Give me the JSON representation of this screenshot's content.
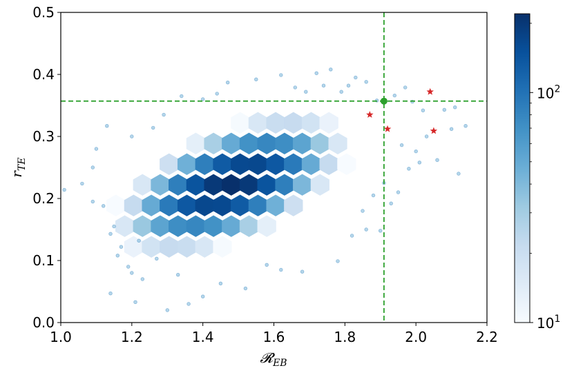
{
  "chart_data": {
    "type": "heatmap",
    "subtype": "hexbin-with-scatter",
    "xlabel": "𝓡",
    "xlabel_sub": "EB",
    "ylabel": "r",
    "ylabel_sub": "TE",
    "xlim": [
      1.0,
      2.2
    ],
    "ylim": [
      0.0,
      0.5
    ],
    "x_ticks": [
      "1.0",
      "1.2",
      "1.4",
      "1.6",
      "1.8",
      "2.0",
      "2.2"
    ],
    "y_ticks": [
      "0.0",
      "0.1",
      "0.2",
      "0.3",
      "0.4",
      "0.5"
    ],
    "grid": false,
    "colormap": "Blues",
    "colorbar": {
      "scale": "log",
      "range": [
        10,
        220
      ],
      "tick_labels": [
        {
          "base": "10",
          "exp": "1",
          "value": 10
        },
        {
          "base": "10",
          "exp": "2",
          "value": 100
        }
      ]
    },
    "density": {
      "center": [
        1.48,
        0.222
      ],
      "peak_count": 220,
      "hex_size_x": 0.05,
      "hex_size_y": 0.0333
    },
    "reference_lines": {
      "vertical_x": 1.91,
      "horizontal_y": 0.357,
      "color": "#2ca02c",
      "style": "dashed"
    },
    "highlight_point": {
      "x": 1.91,
      "y": 0.357,
      "color": "#2ca02c"
    },
    "star_points": {
      "color": "#d62728",
      "points": [
        {
          "x": 1.87,
          "y": 0.335
        },
        {
          "x": 1.92,
          "y": 0.312
        },
        {
          "x": 2.04,
          "y": 0.372
        },
        {
          "x": 2.05,
          "y": 0.309
        }
      ]
    },
    "scatter_color": "#6baed6",
    "sparse_points": [
      [
        1.01,
        0.214
      ],
      [
        1.09,
        0.195
      ],
      [
        1.12,
        0.188
      ],
      [
        1.15,
        0.155
      ],
      [
        1.14,
        0.143
      ],
      [
        1.17,
        0.122
      ],
      [
        1.16,
        0.108
      ],
      [
        1.19,
        0.09
      ],
      [
        1.2,
        0.08
      ],
      [
        1.23,
        0.07
      ],
      [
        1.14,
        0.047
      ],
      [
        1.21,
        0.033
      ],
      [
        1.3,
        0.02
      ],
      [
        1.36,
        0.03
      ],
      [
        1.4,
        0.042
      ],
      [
        1.45,
        0.063
      ],
      [
        1.58,
        0.093
      ],
      [
        1.62,
        0.085
      ],
      [
        1.68,
        0.082
      ],
      [
        1.78,
        0.099
      ],
      [
        1.82,
        0.14
      ],
      [
        1.86,
        0.15
      ],
      [
        1.9,
        0.148
      ],
      [
        1.93,
        0.192
      ],
      [
        1.95,
        0.21
      ],
      [
        1.98,
        0.248
      ],
      [
        2.01,
        0.258
      ],
      [
        2.03,
        0.3
      ],
      [
        2.06,
        0.262
      ],
      [
        2.12,
        0.24
      ],
      [
        2.1,
        0.312
      ],
      [
        2.14,
        0.317
      ],
      [
        2.08,
        0.343
      ],
      [
        2.02,
        0.342
      ],
      [
        1.99,
        0.356
      ],
      [
        1.94,
        0.366
      ],
      [
        1.86,
        0.388
      ],
      [
        1.83,
        0.395
      ],
      [
        1.79,
        0.372
      ],
      [
        1.74,
        0.382
      ],
      [
        1.69,
        0.372
      ],
      [
        1.66,
        0.379
      ],
      [
        1.62,
        0.399
      ],
      [
        1.55,
        0.392
      ],
      [
        1.47,
        0.387
      ],
      [
        1.44,
        0.369
      ],
      [
        1.4,
        0.36
      ],
      [
        1.34,
        0.365
      ],
      [
        1.29,
        0.335
      ],
      [
        1.26,
        0.314
      ],
      [
        1.2,
        0.3
      ],
      [
        1.13,
        0.317
      ],
      [
        1.1,
        0.28
      ],
      [
        1.09,
        0.25
      ],
      [
        1.06,
        0.224
      ],
      [
        1.72,
        0.402
      ],
      [
        1.76,
        0.408
      ],
      [
        1.81,
        0.382
      ],
      [
        1.96,
        0.286
      ],
      [
        2.0,
        0.276
      ],
      [
        2.11,
        0.347
      ],
      [
        1.89,
        0.358
      ],
      [
        1.97,
        0.379
      ],
      [
        1.91,
        0.225
      ],
      [
        1.88,
        0.205
      ],
      [
        1.85,
        0.18
      ],
      [
        1.22,
        0.132
      ],
      [
        1.27,
        0.103
      ],
      [
        1.33,
        0.077
      ],
      [
        1.52,
        0.055
      ]
    ]
  }
}
